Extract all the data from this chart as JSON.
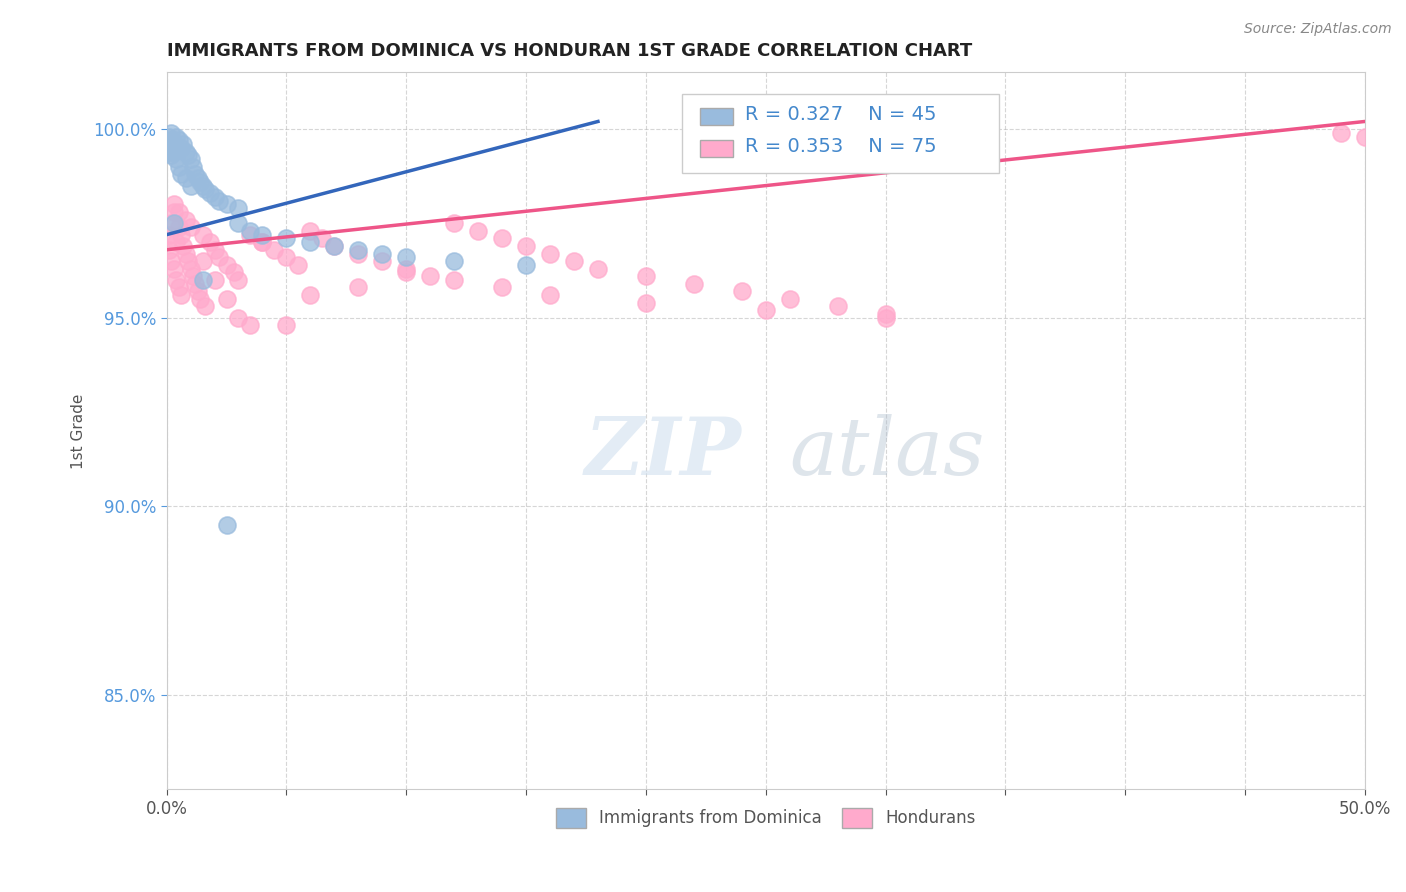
{
  "title": "IMMIGRANTS FROM DOMINICA VS HONDURAN 1ST GRADE CORRELATION CHART",
  "source": "Source: ZipAtlas.com",
  "ylabel": "1st Grade",
  "xlim": [
    0.0,
    0.5
  ],
  "ylim": [
    0.825,
    1.015
  ],
  "xticks": [
    0.0,
    0.05,
    0.1,
    0.15,
    0.2,
    0.25,
    0.3,
    0.35,
    0.4,
    0.45,
    0.5
  ],
  "xticklabels": [
    "0.0%",
    "",
    "",
    "",
    "",
    "",
    "",
    "",
    "",
    "",
    "50.0%"
  ],
  "yticks": [
    0.85,
    0.9,
    0.95,
    1.0
  ],
  "yticklabels": [
    "85.0%",
    "90.0%",
    "95.0%",
    "100.0%"
  ],
  "legend_blue_label": "Immigrants from Dominica",
  "legend_pink_label": "Hondurans",
  "r_blue": "R = 0.327",
  "n_blue": "N = 45",
  "r_pink": "R = 0.353",
  "n_pink": "N = 75",
  "blue_color": "#99BBDD",
  "pink_color": "#FFAACC",
  "blue_line_color": "#3366BB",
  "pink_line_color": "#EE5588",
  "background_color": "#FFFFFF",
  "blue_line_x0": 0.0,
  "blue_line_y0": 0.972,
  "blue_line_x1": 0.18,
  "blue_line_y1": 1.002,
  "pink_line_x0": 0.0,
  "pink_line_y0": 0.968,
  "pink_line_x1": 0.5,
  "pink_line_y1": 1.002,
  "blue_scatter_x": [
    0.001,
    0.001,
    0.001,
    0.002,
    0.002,
    0.002,
    0.003,
    0.003,
    0.004,
    0.004,
    0.005,
    0.005,
    0.006,
    0.006,
    0.007,
    0.008,
    0.008,
    0.009,
    0.01,
    0.01,
    0.011,
    0.012,
    0.013,
    0.014,
    0.015,
    0.016,
    0.018,
    0.02,
    0.022,
    0.025,
    0.03,
    0.03,
    0.035,
    0.04,
    0.05,
    0.06,
    0.07,
    0.08,
    0.09,
    0.1,
    0.12,
    0.15,
    0.003,
    0.015,
    0.025
  ],
  "blue_scatter_y": [
    0.998,
    0.996,
    0.994,
    0.999,
    0.997,
    0.993,
    0.996,
    0.994,
    0.998,
    0.992,
    0.997,
    0.99,
    0.995,
    0.988,
    0.996,
    0.994,
    0.987,
    0.993,
    0.992,
    0.985,
    0.99,
    0.988,
    0.987,
    0.986,
    0.985,
    0.984,
    0.983,
    0.982,
    0.981,
    0.98,
    0.979,
    0.975,
    0.973,
    0.972,
    0.971,
    0.97,
    0.969,
    0.968,
    0.967,
    0.966,
    0.965,
    0.964,
    0.975,
    0.96,
    0.895
  ],
  "pink_scatter_x": [
    0.001,
    0.001,
    0.002,
    0.002,
    0.003,
    0.003,
    0.004,
    0.004,
    0.005,
    0.005,
    0.006,
    0.006,
    0.007,
    0.008,
    0.009,
    0.01,
    0.011,
    0.012,
    0.013,
    0.014,
    0.015,
    0.016,
    0.018,
    0.02,
    0.022,
    0.025,
    0.028,
    0.03,
    0.035,
    0.04,
    0.045,
    0.05,
    0.055,
    0.06,
    0.065,
    0.07,
    0.08,
    0.09,
    0.1,
    0.11,
    0.12,
    0.13,
    0.14,
    0.15,
    0.16,
    0.17,
    0.18,
    0.2,
    0.22,
    0.24,
    0.26,
    0.28,
    0.3,
    0.003,
    0.005,
    0.008,
    0.01,
    0.015,
    0.02,
    0.025,
    0.03,
    0.035,
    0.04,
    0.06,
    0.08,
    0.1,
    0.12,
    0.14,
    0.16,
    0.2,
    0.25,
    0.3,
    0.05,
    0.49,
    0.5
  ],
  "pink_scatter_y": [
    0.972,
    0.968,
    0.975,
    0.965,
    0.978,
    0.963,
    0.97,
    0.96,
    0.974,
    0.958,
    0.972,
    0.956,
    0.969,
    0.967,
    0.965,
    0.963,
    0.961,
    0.959,
    0.957,
    0.955,
    0.972,
    0.953,
    0.97,
    0.968,
    0.966,
    0.964,
    0.962,
    0.96,
    0.972,
    0.97,
    0.968,
    0.966,
    0.964,
    0.973,
    0.971,
    0.969,
    0.967,
    0.965,
    0.963,
    0.961,
    0.975,
    0.973,
    0.971,
    0.969,
    0.967,
    0.965,
    0.963,
    0.961,
    0.959,
    0.957,
    0.955,
    0.953,
    0.951,
    0.98,
    0.978,
    0.976,
    0.974,
    0.965,
    0.96,
    0.955,
    0.95,
    0.948,
    0.97,
    0.956,
    0.958,
    0.962,
    0.96,
    0.958,
    0.956,
    0.954,
    0.952,
    0.95,
    0.948,
    0.999,
    0.998
  ]
}
